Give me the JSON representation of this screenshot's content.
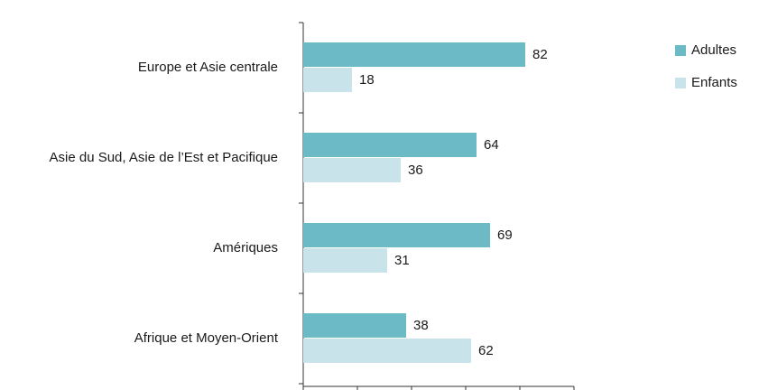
{
  "chart_data": {
    "type": "barh",
    "categories": [
      "Europe et Asie centrale",
      "Asie du Sud, Asie de l’Est et Pacifique",
      "Amériques",
      "Afrique et Moyen-Orient"
    ],
    "series": [
      {
        "name": "Adultes",
        "color": "#6bbac5",
        "values": [
          82,
          64,
          69,
          38
        ]
      },
      {
        "name": "Enfants",
        "color": "#c8e4ea",
        "values": [
          18,
          36,
          31,
          62
        ]
      }
    ],
    "xlim": [
      0,
      100
    ],
    "xticks": [
      0,
      20,
      40,
      60,
      80,
      100
    ],
    "legend": "top-right"
  }
}
